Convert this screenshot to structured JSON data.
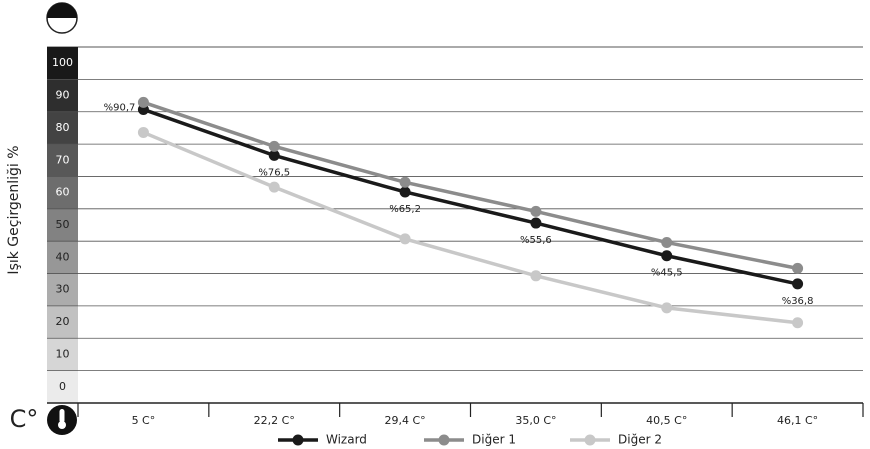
{
  "chart_data": {
    "type": "line",
    "y_label": "Işık Geçirgenliği %",
    "x_unit_label": "C°",
    "categories": [
      "5 C°",
      "22,2 C°",
      "29,4 C°",
      "35,0 C°",
      "40,5 C°",
      "46,1 C°"
    ],
    "series": [
      {
        "name": "Wizard",
        "color": "#1a1a1a",
        "values": [
          90.7,
          76.5,
          65.2,
          55.6,
          45.5,
          36.8
        ],
        "value_labels": [
          "%90,7",
          "%76,5",
          "%65,2",
          "%55,6",
          "%45,5",
          "%36,8"
        ]
      },
      {
        "name": "Diğer 1",
        "color": "#8c8c8c",
        "values": [
          92.9,
          79.3,
          68.2,
          59.2,
          49.6,
          41.6
        ]
      },
      {
        "name": "Diğer 2",
        "color": "#c8c8c8",
        "values": [
          83.6,
          66.7,
          50.7,
          39.3,
          29.4,
          24.8
        ]
      }
    ],
    "ylim": [
      0,
      110
    ],
    "yticks": [
      0,
      10,
      20,
      30,
      40,
      50,
      60,
      70,
      80,
      90,
      100
    ],
    "grid": true
  }
}
